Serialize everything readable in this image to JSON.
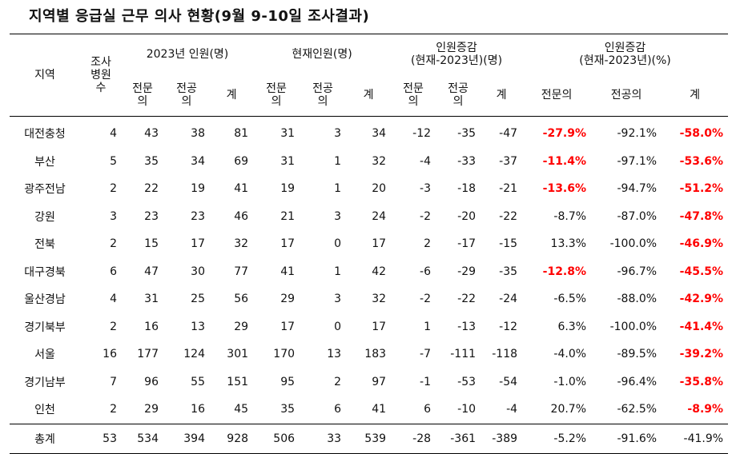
{
  "title": "지역별 응급실 근무 의사 현황(9월 9-10일 조사결과)",
  "header": {
    "region": "지역",
    "hospitals_lines": [
      "조사",
      "병원",
      "수"
    ],
    "group_2023": "2023년 인원(명)",
    "group_current": "현재인원(명)",
    "group_diff_lines": [
      "인원증감",
      "(현재-2023년)(명)"
    ],
    "group_pct_lines": [
      "인원증감",
      "(현재-2023년)(%)"
    ],
    "specialist_lines": [
      "전문",
      "의"
    ],
    "resident_lines": [
      "전공",
      "의"
    ],
    "total": "계",
    "specialist_full": "전문의",
    "resident_full": "전공의"
  },
  "rows": [
    {
      "region": "대전충청",
      "hospitals": "4",
      "s2023": "43",
      "r2023": "38",
      "t2023": "81",
      "sNow": "31",
      "rNow": "3",
      "tNow": "34",
      "sDiff": "-12",
      "rDiff": "-35",
      "tDiff": "-47",
      "sPct": "-27.9%",
      "rPct": "-92.1%",
      "tPct": "-58.0%",
      "sPctRed": true,
      "tPctRed": true
    },
    {
      "region": "부산",
      "hospitals": "5",
      "s2023": "35",
      "r2023": "34",
      "t2023": "69",
      "sNow": "31",
      "rNow": "1",
      "tNow": "32",
      "sDiff": "-4",
      "rDiff": "-33",
      "tDiff": "-37",
      "sPct": "-11.4%",
      "rPct": "-97.1%",
      "tPct": "-53.6%",
      "sPctRed": true,
      "tPctRed": true
    },
    {
      "region": "광주전남",
      "hospitals": "2",
      "s2023": "22",
      "r2023": "19",
      "t2023": "41",
      "sNow": "19",
      "rNow": "1",
      "tNow": "20",
      "sDiff": "-3",
      "rDiff": "-18",
      "tDiff": "-21",
      "sPct": "-13.6%",
      "rPct": "-94.7%",
      "tPct": "-51.2%",
      "sPctRed": true,
      "tPctRed": true
    },
    {
      "region": "강원",
      "hospitals": "3",
      "s2023": "23",
      "r2023": "23",
      "t2023": "46",
      "sNow": "21",
      "rNow": "3",
      "tNow": "24",
      "sDiff": "-2",
      "rDiff": "-20",
      "tDiff": "-22",
      "sPct": "-8.7%",
      "rPct": "-87.0%",
      "tPct": "-47.8%",
      "sPctRed": false,
      "tPctRed": true
    },
    {
      "region": "전북",
      "hospitals": "2",
      "s2023": "15",
      "r2023": "17",
      "t2023": "32",
      "sNow": "17",
      "rNow": "0",
      "tNow": "17",
      "sDiff": "2",
      "rDiff": "-17",
      "tDiff": "-15",
      "sPct": "13.3%",
      "rPct": "-100.0%",
      "tPct": "-46.9%",
      "sPctRed": false,
      "tPctRed": true
    },
    {
      "region": "대구경북",
      "hospitals": "6",
      "s2023": "47",
      "r2023": "30",
      "t2023": "77",
      "sNow": "41",
      "rNow": "1",
      "tNow": "42",
      "sDiff": "-6",
      "rDiff": "-29",
      "tDiff": "-35",
      "sPct": "-12.8%",
      "rPct": "-96.7%",
      "tPct": "-45.5%",
      "sPctRed": true,
      "tPctRed": true
    },
    {
      "region": "울산경남",
      "hospitals": "4",
      "s2023": "31",
      "r2023": "25",
      "t2023": "56",
      "sNow": "29",
      "rNow": "3",
      "tNow": "32",
      "sDiff": "-2",
      "rDiff": "-22",
      "tDiff": "-24",
      "sPct": "-6.5%",
      "rPct": "-88.0%",
      "tPct": "-42.9%",
      "sPctRed": false,
      "tPctRed": true
    },
    {
      "region": "경기북부",
      "hospitals": "2",
      "s2023": "16",
      "r2023": "13",
      "t2023": "29",
      "sNow": "17",
      "rNow": "0",
      "tNow": "17",
      "sDiff": "1",
      "rDiff": "-13",
      "tDiff": "-12",
      "sPct": "6.3%",
      "rPct": "-100.0%",
      "tPct": "-41.4%",
      "sPctRed": false,
      "tPctRed": true
    },
    {
      "region": "서울",
      "hospitals": "16",
      "s2023": "177",
      "r2023": "124",
      "t2023": "301",
      "sNow": "170",
      "rNow": "13",
      "tNow": "183",
      "sDiff": "-7",
      "rDiff": "-111",
      "tDiff": "-118",
      "sPct": "-4.0%",
      "rPct": "-89.5%",
      "tPct": "-39.2%",
      "sPctRed": false,
      "tPctRed": true
    },
    {
      "region": "경기남부",
      "hospitals": "7",
      "s2023": "96",
      "r2023": "55",
      "t2023": "151",
      "sNow": "95",
      "rNow": "2",
      "tNow": "97",
      "sDiff": "-1",
      "rDiff": "-53",
      "tDiff": "-54",
      "sPct": "-1.0%",
      "rPct": "-96.4%",
      "tPct": "-35.8%",
      "sPctRed": false,
      "tPctRed": true
    },
    {
      "region": "인천",
      "hospitals": "2",
      "s2023": "29",
      "r2023": "16",
      "t2023": "45",
      "sNow": "35",
      "rNow": "6",
      "tNow": "41",
      "sDiff": "6",
      "rDiff": "-10",
      "tDiff": "-4",
      "sPct": "20.7%",
      "rPct": "-62.5%",
      "tPct": "-8.9%",
      "sPctRed": false,
      "tPctRed": true
    }
  ],
  "total": {
    "region": "총계",
    "hospitals": "53",
    "s2023": "534",
    "r2023": "394",
    "t2023": "928",
    "sNow": "506",
    "rNow": "33",
    "tNow": "539",
    "sDiff": "-28",
    "rDiff": "-361",
    "tDiff": "-389",
    "sPct": "-5.2%",
    "rPct": "-91.6%",
    "tPct": "-41.9%"
  },
  "colors": {
    "highlight": "#ff0000",
    "text": "#111111",
    "rule": "#000000"
  }
}
